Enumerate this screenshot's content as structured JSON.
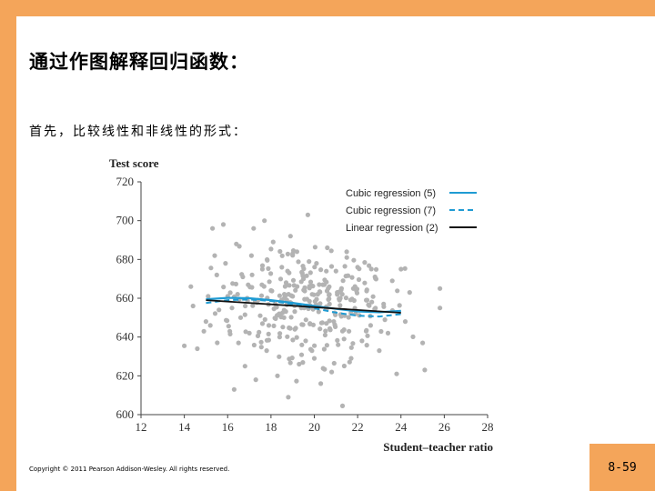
{
  "slide": {
    "title": "通过作图解释回归函数：",
    "subtitle": "首先，比较线性和非线性的形式：",
    "copyright": "Copyright © 2011 Pearson Addison-Wesley. All rights reserved.",
    "page_number": "8-59"
  },
  "colors": {
    "background": "#f4a55a",
    "points": "#b3b3b3",
    "cubic5": "#1f9bd3",
    "cubic7": "#1f9bd3",
    "linear": "#111111"
  },
  "chart_data": {
    "type": "scatter",
    "xlabel": "Student–teacher ratio",
    "ylabel": "Test score",
    "xlim": [
      12,
      28
    ],
    "ylim": [
      600,
      720
    ],
    "x_ticks": [
      12,
      14,
      16,
      18,
      20,
      22,
      24,
      26,
      28
    ],
    "y_ticks": [
      600,
      620,
      640,
      660,
      680,
      700,
      720
    ],
    "legend_position": "top-right",
    "legend": [
      {
        "label": "Cubic regression (5)",
        "style": "solid",
        "color": "#1f9bd3"
      },
      {
        "label": "Cubic regression (7)",
        "style": "dashed",
        "color": "#1f9bd3"
      },
      {
        "label": "Linear regression (2)",
        "style": "solid",
        "color": "#111111"
      }
    ],
    "fits": {
      "linear": {
        "x": [
          15.0,
          24.0
        ],
        "y": [
          659.0,
          652.5
        ]
      },
      "cubic5": {
        "x": [
          15.0,
          16.0,
          17.0,
          18.0,
          19.0,
          20.0,
          21.0,
          22.0,
          23.0,
          24.0
        ],
        "y": [
          659.5,
          660.2,
          660.0,
          659.0,
          657.6,
          656.0,
          654.5,
          653.2,
          652.8,
          653.5
        ]
      },
      "cubic7": {
        "x": [
          15.0,
          16.0,
          17.0,
          18.0,
          19.0,
          20.0,
          21.0,
          22.0,
          23.0,
          24.0
        ],
        "y": [
          657.5,
          659.0,
          659.4,
          658.6,
          657.0,
          654.8,
          652.6,
          651.0,
          650.6,
          651.8
        ]
      },
      "x_range": [
        15,
        24
      ]
    },
    "points": [
      [
        14.0,
        635.5
      ],
      [
        14.3,
        666.0
      ],
      [
        14.4,
        656.0
      ],
      [
        14.6,
        634.0
      ],
      [
        14.9,
        643.0
      ],
      [
        15.0,
        648.0
      ],
      [
        15.1,
        661.0
      ],
      [
        15.2,
        646.0
      ],
      [
        15.3,
        696.0
      ],
      [
        15.4,
        682.0
      ],
      [
        15.5,
        672.0
      ],
      [
        15.6,
        654.0
      ],
      [
        15.8,
        698.0
      ],
      [
        15.9,
        678.0
      ],
      [
        16.0,
        661.0
      ],
      [
        16.1,
        643.0
      ],
      [
        16.2,
        655.0
      ],
      [
        16.3,
        613.0
      ],
      [
        16.4,
        688.0
      ],
      [
        16.5,
        637.0
      ],
      [
        16.6,
        650.0
      ],
      [
        16.7,
        671.0
      ],
      [
        16.8,
        625.0
      ],
      [
        16.9,
        660.0
      ],
      [
        17.0,
        642.0
      ],
      [
        17.1,
        682.0
      ],
      [
        17.2,
        696.0
      ],
      [
        17.3,
        618.0
      ],
      [
        17.4,
        659.0
      ],
      [
        17.5,
        651.0
      ],
      [
        17.6,
        675.0
      ],
      [
        17.7,
        700.0
      ],
      [
        17.8,
        633.0
      ],
      [
        17.9,
        646.0
      ],
      [
        18.0,
        664.0
      ],
      [
        18.1,
        689.0
      ],
      [
        18.2,
        657.0
      ],
      [
        18.3,
        620.0
      ],
      [
        18.4,
        640.0
      ],
      [
        18.5,
        676.0
      ],
      [
        18.6,
        650.0
      ],
      [
        18.7,
        668.0
      ],
      [
        18.8,
        609.0
      ],
      [
        18.9,
        692.0
      ],
      [
        19.0,
        661.0
      ],
      [
        19.1,
        644.0
      ],
      [
        19.2,
        684.0
      ],
      [
        19.3,
        626.0
      ],
      [
        19.4,
        655.0
      ],
      [
        19.5,
        670.0
      ],
      [
        19.6,
        638.0
      ],
      [
        19.7,
        703.0
      ],
      [
        19.8,
        647.0
      ],
      [
        19.9,
        662.0
      ],
      [
        20.0,
        629.0
      ],
      [
        20.1,
        678.0
      ],
      [
        20.2,
        653.0
      ],
      [
        20.3,
        616.0
      ],
      [
        20.4,
        667.0
      ],
      [
        20.5,
        641.0
      ],
      [
        20.6,
        686.0
      ],
      [
        20.7,
        657.0
      ],
      [
        20.8,
        622.0
      ],
      [
        20.9,
        648.0
      ],
      [
        21.0,
        674.0
      ],
      [
        21.1,
        636.0
      ],
      [
        21.2,
        660.0
      ],
      [
        21.3,
        604.5
      ],
      [
        21.4,
        651.0
      ],
      [
        21.5,
        681.0
      ],
      [
        21.6,
        643.0
      ],
      [
        21.7,
        629.0
      ],
      [
        21.8,
        665.0
      ],
      [
        21.9,
        652.0
      ],
      [
        22.0,
        676.0
      ],
      [
        22.2,
        638.0
      ],
      [
        22.4,
        659.0
      ],
      [
        22.6,
        646.0
      ],
      [
        22.8,
        671.0
      ],
      [
        23.0,
        633.0
      ],
      [
        23.2,
        657.0
      ],
      [
        23.4,
        642.0
      ],
      [
        23.6,
        669.0
      ],
      [
        23.8,
        621.0
      ],
      [
        24.0,
        675.0
      ],
      [
        24.2,
        648.0
      ],
      [
        24.4,
        663.0
      ],
      [
        25.0,
        637.0
      ],
      [
        25.1,
        623.0
      ],
      [
        25.8,
        665.0
      ],
      [
        25.8,
        655.0
      ]
    ],
    "cloud": {
      "x_center": 19.8,
      "x_spread": 1.75,
      "y_center": 656.0,
      "y_spread": 13.0,
      "count": 260,
      "seed": 7
    }
  }
}
